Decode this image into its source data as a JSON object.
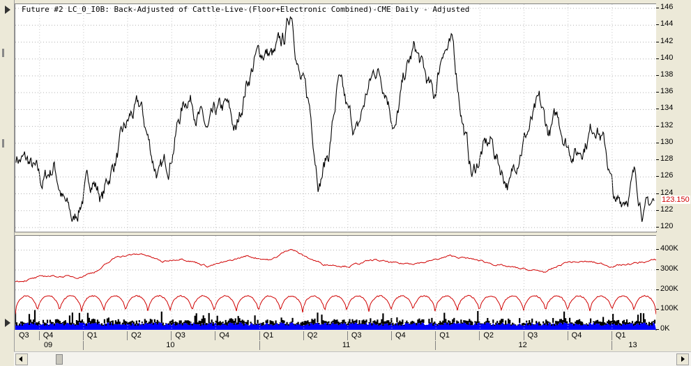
{
  "chart_data": {
    "type": "line",
    "title": "Future #2 LC_0_I0B: Back-Adjusted of Cattle-Live-(Floor+Electronic Combined)-CME Daily -  Adjusted",
    "last_price": "123.150",
    "price_axis": {
      "ylim": [
        119.5,
        146.5
      ],
      "ticks": [
        "146",
        "144",
        "142",
        "140",
        "138",
        "136",
        "134",
        "132",
        "130",
        "128",
        "126",
        "124",
        "122",
        "120"
      ]
    },
    "volume_axis": {
      "ylim": [
        0,
        450000
      ],
      "ticks": [
        "400K",
        "300K",
        "200K",
        "100K",
        "0K"
      ]
    },
    "quarters": [
      "Q3",
      "Q4",
      "Q1",
      "Q2",
      "Q3",
      "Q4",
      "Q1",
      "Q2",
      "Q3",
      "Q4",
      "Q1",
      "Q2",
      "Q3",
      "Q4",
      "Q1"
    ],
    "years": [
      "09",
      "10",
      "11",
      "12",
      "13"
    ],
    "price_series": {
      "name": "Price",
      "color": "#000000",
      "x": [
        0,
        0.02,
        0.04,
        0.06,
        0.075,
        0.09,
        0.105,
        0.12,
        0.135,
        0.15,
        0.165,
        0.18,
        0.195,
        0.205,
        0.215,
        0.225,
        0.24,
        0.255,
        0.27,
        0.285,
        0.3,
        0.315,
        0.33,
        0.345,
        0.36,
        0.375,
        0.39,
        0.405,
        0.42,
        0.432,
        0.445,
        0.46,
        0.475,
        0.49,
        0.505,
        0.52,
        0.535,
        0.55,
        0.565,
        0.58,
        0.595,
        0.61,
        0.625,
        0.64,
        0.655,
        0.67,
        0.685,
        0.7,
        0.715,
        0.73,
        0.745,
        0.76,
        0.775,
        0.79,
        0.805,
        0.82,
        0.835,
        0.85,
        0.865,
        0.88,
        0.895,
        0.91,
        0.925,
        0.94,
        0.955,
        0.97,
        0.985,
        1.0
      ],
      "y": [
        128.5,
        127.5,
        125,
        127.5,
        123,
        120.5,
        124,
        126,
        123.5,
        127,
        130,
        133,
        134,
        131,
        128,
        126,
        128,
        133,
        136,
        134,
        131,
        133,
        134,
        131,
        137,
        140,
        141,
        140,
        142,
        146,
        138,
        134,
        126,
        129,
        137,
        133,
        131,
        136,
        139,
        137,
        132,
        138,
        141,
        138,
        135,
        142,
        141,
        133,
        126,
        129,
        130,
        127,
        125,
        130,
        132,
        134,
        131,
        133,
        130,
        129,
        131,
        133,
        129,
        122,
        124,
        126,
        122,
        123.15
      ]
    },
    "open_interest_series": {
      "name": "Open Interest",
      "color": "#d00000",
      "x": [
        0,
        0.05,
        0.1,
        0.13,
        0.16,
        0.2,
        0.23,
        0.26,
        0.3,
        0.33,
        0.36,
        0.4,
        0.43,
        0.45,
        0.48,
        0.52,
        0.56,
        0.6,
        0.64,
        0.68,
        0.72,
        0.76,
        0.8,
        0.83,
        0.86,
        0.9,
        0.93,
        0.96,
        1.0
      ],
      "y": [
        240000,
        270000,
        265000,
        300000,
        370000,
        380000,
        340000,
        360000,
        320000,
        340000,
        370000,
        350000,
        410000,
        370000,
        330000,
        320000,
        350000,
        330000,
        340000,
        370000,
        350000,
        320000,
        300000,
        290000,
        340000,
        340000,
        320000,
        330000,
        350000
      ]
    },
    "volume_cycle_series": {
      "name": "Volume",
      "color": "#d00000",
      "cycle_low": 80000,
      "cycle_high": 170000
    },
    "volume_bars": {
      "color": "#0000ff",
      "outline": "#000000",
      "typical": [
        20000,
        90000
      ]
    }
  }
}
